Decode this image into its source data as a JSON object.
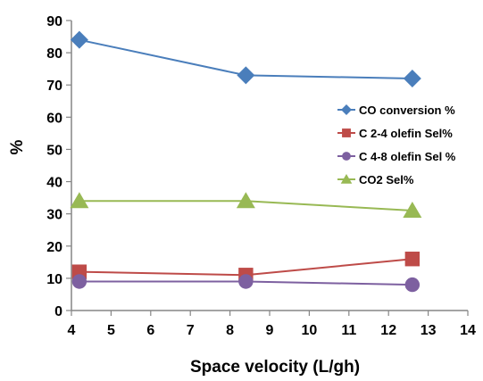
{
  "chart_data": {
    "type": "line",
    "title": "",
    "xlabel": "Space velocity (L/gh)",
    "ylabel": "%",
    "xlim": [
      4,
      14
    ],
    "ylim": [
      0,
      90
    ],
    "xticks": [
      "4",
      "5",
      "6",
      "7",
      "8",
      "9",
      "10",
      "11",
      "12",
      "13",
      "14"
    ],
    "yticks": [
      "0",
      "10",
      "20",
      "30",
      "40",
      "50",
      "60",
      "70",
      "80",
      "90"
    ],
    "grid": false,
    "legend_position": "right",
    "x": [
      4.2,
      8.4,
      12.6
    ],
    "series": [
      {
        "name": "CO conversion %",
        "color": "#4a7ebb",
        "marker": "diamond",
        "values": [
          84,
          73,
          72
        ]
      },
      {
        "name": "C 2-4 olefin Sel%",
        "color": "#be4b48",
        "marker": "square",
        "values": [
          12,
          11,
          16
        ]
      },
      {
        "name": "C 4-8 olefin Sel %",
        "color": "#7d60a0",
        "marker": "circle",
        "values": [
          9,
          9,
          8
        ]
      },
      {
        "name": "CO2 Sel%",
        "color": "#98b954",
        "marker": "triangle",
        "values": [
          34,
          34,
          31
        ]
      }
    ]
  }
}
